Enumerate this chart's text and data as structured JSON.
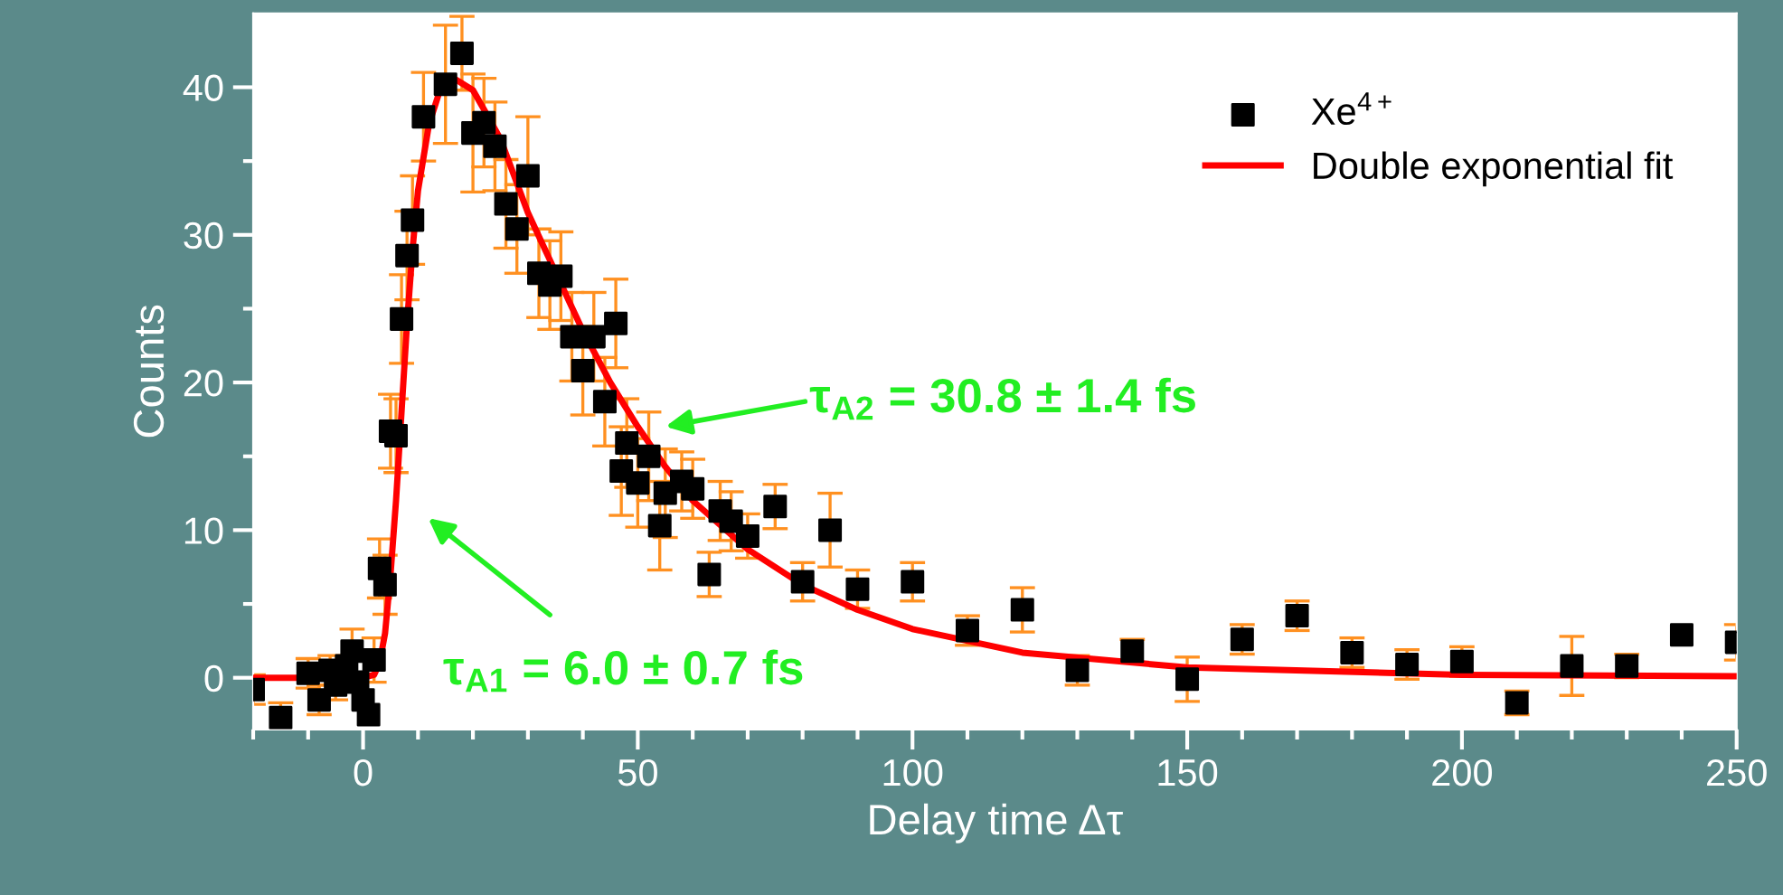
{
  "chart_data": {
    "type": "scatter",
    "xlabel": "Delay time Δτ",
    "ylabel": "Counts",
    "xlim": [
      -20,
      250
    ],
    "ylim": [
      -3.5,
      45
    ],
    "xticks": [
      {
        "value": -20,
        "label": null
      },
      {
        "value": -10,
        "label": null
      },
      0,
      {
        "value": 10,
        "label": null
      },
      {
        "value": 20,
        "label": null
      },
      {
        "value": 30,
        "label": null
      },
      {
        "value": 40,
        "label": null
      },
      50,
      {
        "value": 60,
        "label": null
      },
      {
        "value": 70,
        "label": null
      },
      {
        "value": 80,
        "label": null
      },
      {
        "value": 90,
        "label": null
      },
      100,
      {
        "value": 110,
        "label": null
      },
      {
        "value": 120,
        "label": null
      },
      {
        "value": 130,
        "label": null
      },
      {
        "value": 140,
        "label": null
      },
      150,
      {
        "value": 160,
        "label": null
      },
      {
        "value": 170,
        "label": null
      },
      {
        "value": 180,
        "label": null
      },
      {
        "value": 190,
        "label": null
      },
      200,
      {
        "value": 210,
        "label": null
      },
      {
        "value": 220,
        "label": null
      },
      {
        "value": 230,
        "label": null
      },
      {
        "value": 240,
        "label": null
      },
      250
    ],
    "yticks": [
      0,
      {
        "value": 5,
        "label": null
      },
      10,
      {
        "value": 15,
        "label": null
      },
      20,
      {
        "value": 25,
        "label": null
      },
      30,
      {
        "value": 35,
        "label": null
      },
      40
    ],
    "grid": false,
    "legend": "top right",
    "series": [
      {
        "name": "Xe$^{4+}$",
        "color": "#000000",
        "marker": "square",
        "x": [
          -20,
          -15,
          -10,
          -8,
          -6,
          -5,
          -3,
          -2,
          -1,
          0,
          1,
          2,
          3,
          4,
          5,
          6,
          7,
          8,
          9,
          11,
          15,
          18,
          20,
          22,
          24,
          26,
          28,
          30,
          32,
          34,
          36,
          38,
          40,
          42,
          44,
          46,
          47,
          48,
          50,
          52,
          54,
          55,
          58,
          60,
          63,
          65,
          67,
          70,
          75,
          80,
          85,
          90,
          100,
          110,
          120,
          130,
          140,
          150,
          160,
          170,
          180,
          190,
          200,
          210,
          220,
          230,
          240,
          250
        ],
        "values": [
          -0.8,
          -2.7,
          0.3,
          -1.5,
          0.5,
          -0.5,
          0.8,
          1.8,
          -0.3,
          -1.5,
          -2.5,
          1.2,
          7.4,
          6.3,
          16.7,
          16.4,
          24.3,
          28.6,
          31,
          38,
          40.2,
          42.3,
          36.9,
          37.6,
          36,
          32.1,
          30.4,
          34,
          27.4,
          26.6,
          27.2,
          23.1,
          20.8,
          23.1,
          18.7,
          24,
          14,
          15.9,
          13.2,
          15,
          10.3,
          12.5,
          13.3,
          12.8,
          7,
          11.3,
          10.6,
          9.6,
          11.6,
          6.5,
          10,
          6,
          6.5,
          3.2,
          4.6,
          0.5,
          1.8,
          -0.1,
          2.6,
          4.2,
          1.7,
          0.9,
          1.1,
          -1.7,
          0.8,
          0.8,
          2.9,
          2.4
        ],
        "errors": [
          1,
          1,
          1,
          1,
          1,
          1,
          null,
          1.5,
          null,
          null,
          null,
          1.5,
          2,
          2,
          2.5,
          2.5,
          3,
          3,
          3,
          3,
          4,
          2.5,
          4,
          3,
          3,
          3,
          3,
          4,
          3,
          3,
          3,
          3,
          3,
          3,
          3,
          3,
          3,
          3,
          3,
          3,
          3,
          3,
          2,
          2,
          1.5,
          2,
          2,
          1.5,
          1.5,
          1.3,
          2.5,
          1.3,
          1.3,
          1,
          1.5,
          1,
          0.8,
          1.5,
          1,
          1,
          1,
          1,
          1,
          0.8,
          2,
          0.8,
          null,
          1.2
        ]
      },
      {
        "name": "Double exponential fit",
        "type": "line",
        "color": "#ff0000",
        "marker": "none",
        "x": [
          -20,
          0,
          2,
          3,
          4,
          5,
          6,
          7,
          8,
          9,
          10,
          12,
          14,
          17,
          20,
          22,
          25,
          30,
          35,
          40,
          45,
          50,
          55,
          60,
          70,
          80,
          90,
          100,
          120,
          150,
          200,
          250
        ],
        "values": [
          0,
          0,
          0.2,
          1,
          3,
          7,
          12,
          18,
          24,
          29,
          33,
          37.5,
          39.8,
          40.5,
          39.8,
          38.5,
          36.5,
          31.5,
          27.5,
          23.5,
          20,
          17,
          14.3,
          12,
          8.7,
          6.3,
          4.6,
          3.3,
          1.7,
          0.7,
          0.2,
          0.1
        ]
      }
    ],
    "annotations": [
      "τ$_{A1}$ = 6.0 ± 0.7 fs",
      "τ$_{A2}$ = 30.8 ± 1.4 fs"
    ]
  }
}
